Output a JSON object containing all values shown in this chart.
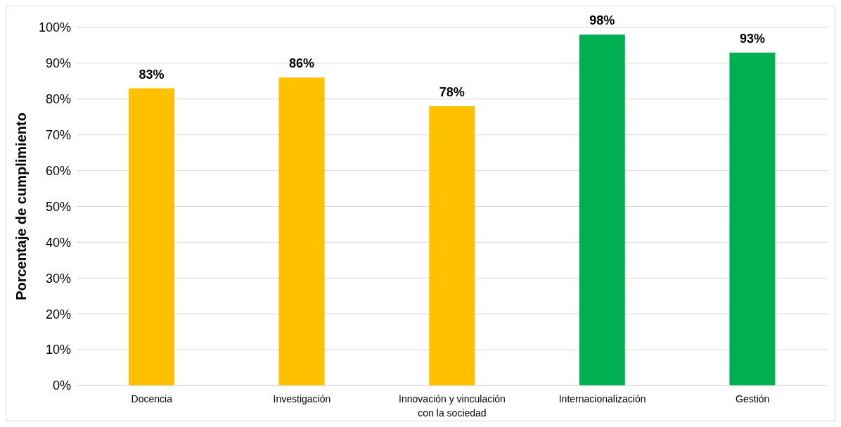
{
  "chart_data": {
    "type": "bar",
    "ylabel": "Porcentaje de cumplimiento",
    "categories": [
      "Docencia",
      "Investigación",
      "Innovación y vinculación con la sociedad",
      "Internacionalización",
      "Gestión"
    ],
    "values": [
      83,
      86,
      78,
      98,
      93
    ],
    "colors": [
      "#ffc000",
      "#ffc000",
      "#ffc000",
      "#00b050",
      "#00b050"
    ],
    "value_labels": [
      "83%",
      "86%",
      "78%",
      "98%",
      "93%"
    ],
    "ylim": [
      0,
      100
    ],
    "yticks": [
      {
        "value": 0,
        "label": "0%"
      },
      {
        "value": 10,
        "label": "10%"
      },
      {
        "value": 20,
        "label": "20%"
      },
      {
        "value": 30,
        "label": "30%"
      },
      {
        "value": 40,
        "label": "40%"
      },
      {
        "value": 50,
        "label": "50%"
      },
      {
        "value": 60,
        "label": "60%"
      },
      {
        "value": 70,
        "label": "70%"
      },
      {
        "value": 80,
        "label": "80%"
      },
      {
        "value": 90,
        "label": "90%"
      },
      {
        "value": 100,
        "label": "100%"
      }
    ],
    "grid": "y"
  }
}
